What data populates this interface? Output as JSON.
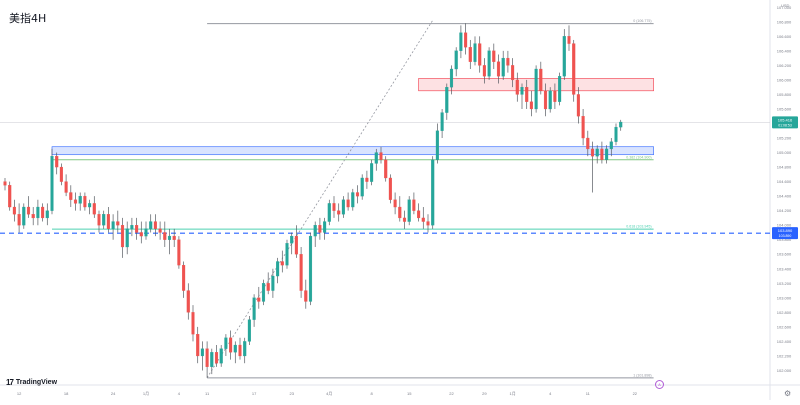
{
  "header": {
    "title": "美指4H",
    "currency": "USD"
  },
  "branding": {
    "logo_text": "TradingView"
  },
  "event_marker": "A",
  "colors": {
    "up": "#26a69a",
    "down": "#ef5350",
    "wick": "#555a60",
    "fib_line": "#9598a1",
    "blue_zone_fill": "rgba(41,98,255,0.18)",
    "blue_zone_border": "#2962ff",
    "red_zone_fill": "rgba(242,54,69,0.15)",
    "red_zone_border": "#f23645",
    "support_dashed": "#2962ff",
    "fib_382": "#81c784",
    "fib_618": "#4dd0b1"
  },
  "chart_data": {
    "type": "candlestick",
    "title": "美指4H",
    "ylim": [
      101.8,
      107.1
    ],
    "y_ticks": [
      {
        "value": 107.0,
        "label": "107.000"
      },
      {
        "value": 106.8,
        "label": "106.800"
      },
      {
        "value": 106.6,
        "label": "106.600"
      },
      {
        "value": 106.4,
        "label": "106.400"
      },
      {
        "value": 106.2,
        "label": "106.200"
      },
      {
        "value": 106.0,
        "label": "106.000"
      },
      {
        "value": 105.8,
        "label": "105.800"
      },
      {
        "value": 105.6,
        "label": "105.600"
      },
      {
        "value": 105.4,
        "label": "105.400"
      },
      {
        "value": 105.2,
        "label": "105.200"
      },
      {
        "value": 105.0,
        "label": "105.000"
      },
      {
        "value": 104.8,
        "label": "104.800"
      },
      {
        "value": 104.6,
        "label": "104.600"
      },
      {
        "value": 104.4,
        "label": "104.400"
      },
      {
        "value": 104.2,
        "label": "104.200"
      },
      {
        "value": 104.0,
        "label": "104.000"
      },
      {
        "value": 103.8,
        "label": "103.800"
      },
      {
        "value": 103.6,
        "label": "103.600"
      },
      {
        "value": 103.4,
        "label": "103.400"
      },
      {
        "value": 103.2,
        "label": "103.200"
      },
      {
        "value": 103.0,
        "label": "103.000"
      },
      {
        "value": 102.8,
        "label": "102.800"
      },
      {
        "value": 102.6,
        "label": "102.600"
      },
      {
        "value": 102.4,
        "label": "102.400"
      },
      {
        "value": 102.2,
        "label": "102.200"
      },
      {
        "value": 102.0,
        "label": "102.000"
      }
    ],
    "x_ticks": [
      {
        "index": 3,
        "label": "12"
      },
      {
        "index": 13,
        "label": "18"
      },
      {
        "index": 23,
        "label": "24"
      },
      {
        "index": 30,
        "label": "1月"
      },
      {
        "index": 37,
        "label": "4"
      },
      {
        "index": 43,
        "label": "11"
      },
      {
        "index": 53,
        "label": "17"
      },
      {
        "index": 61,
        "label": "23"
      },
      {
        "index": 69,
        "label": "4月"
      },
      {
        "index": 78,
        "label": "8"
      },
      {
        "index": 86,
        "label": "15"
      },
      {
        "index": 95,
        "label": "22"
      },
      {
        "index": 102,
        "label": "29"
      },
      {
        "index": 108,
        "label": "1月"
      },
      {
        "index": 116,
        "label": "4"
      },
      {
        "index": 124,
        "label": "11"
      },
      {
        "index": 134,
        "label": "22"
      }
    ],
    "price_labels": [
      {
        "value": 105.416,
        "text": "105.416",
        "sub": "01:08:53",
        "color": "#26a69a"
      },
      {
        "value": 103.89,
        "text": "103.890",
        "sub": "103.890",
        "color": "#2962ff"
      }
    ],
    "fib_levels": [
      {
        "value": 106.775,
        "label": "0 (106.775)",
        "color": "#9598a1"
      },
      {
        "value": 104.9,
        "label": "0.382 (104.900)",
        "color": "#81c784"
      },
      {
        "value": 103.945,
        "label": "0.618 (103.945)",
        "color": "#4dd0b1"
      },
      {
        "value": 101.898,
        "label": "1 (101.898)",
        "color": "#9598a1"
      }
    ],
    "zones": [
      {
        "name": "blue-support-zone",
        "from_index": 10,
        "to_index": 138,
        "y_low": 104.97,
        "y_high": 105.08
      },
      {
        "name": "red-resistance-zone",
        "from_index": 88,
        "to_index": 138,
        "y_low": 105.85,
        "y_high": 106.02
      }
    ],
    "support_line": 103.89,
    "trendline": {
      "from": {
        "index": 43,
        "value": 101.9
      },
      "to": {
        "index": 91,
        "value": 106.82
      }
    },
    "candles": [
      {
        "o": 104.6,
        "h": 104.65,
        "l": 104.48,
        "c": 104.55
      },
      {
        "o": 104.55,
        "h": 104.6,
        "l": 104.2,
        "c": 104.25
      },
      {
        "o": 104.25,
        "h": 104.35,
        "l": 104.05,
        "c": 104.15
      },
      {
        "o": 104.15,
        "h": 104.3,
        "l": 103.9,
        "c": 104.0
      },
      {
        "o": 104.0,
        "h": 104.3,
        "l": 103.95,
        "c": 104.25
      },
      {
        "o": 104.25,
        "h": 104.4,
        "l": 104.1,
        "c": 104.15
      },
      {
        "o": 104.15,
        "h": 104.25,
        "l": 104.0,
        "c": 104.1
      },
      {
        "o": 104.1,
        "h": 104.35,
        "l": 104.0,
        "c": 104.25
      },
      {
        "o": 104.25,
        "h": 104.3,
        "l": 104.05,
        "c": 104.1
      },
      {
        "o": 104.1,
        "h": 104.3,
        "l": 104.0,
        "c": 104.2
      },
      {
        "o": 104.2,
        "h": 105.05,
        "l": 104.15,
        "c": 104.95
      },
      {
        "o": 104.95,
        "h": 105.0,
        "l": 104.7,
        "c": 104.8
      },
      {
        "o": 104.8,
        "h": 104.85,
        "l": 104.55,
        "c": 104.6
      },
      {
        "o": 104.6,
        "h": 104.7,
        "l": 104.4,
        "c": 104.45
      },
      {
        "o": 104.45,
        "h": 104.55,
        "l": 104.25,
        "c": 104.35
      },
      {
        "o": 104.35,
        "h": 104.45,
        "l": 104.2,
        "c": 104.3
      },
      {
        "o": 104.3,
        "h": 104.45,
        "l": 104.2,
        "c": 104.4
      },
      {
        "o": 104.4,
        "h": 104.45,
        "l": 104.2,
        "c": 104.25
      },
      {
        "o": 104.25,
        "h": 104.35,
        "l": 104.15,
        "c": 104.3
      },
      {
        "o": 104.3,
        "h": 104.4,
        "l": 104.1,
        "c": 104.15
      },
      {
        "o": 104.15,
        "h": 104.2,
        "l": 103.9,
        "c": 104.0
      },
      {
        "o": 104.0,
        "h": 104.2,
        "l": 103.95,
        "c": 104.15
      },
      {
        "o": 104.15,
        "h": 104.25,
        "l": 103.9,
        "c": 103.95
      },
      {
        "o": 103.95,
        "h": 104.15,
        "l": 103.8,
        "c": 104.05
      },
      {
        "o": 104.05,
        "h": 104.2,
        "l": 103.9,
        "c": 104.0
      },
      {
        "o": 104.0,
        "h": 104.1,
        "l": 103.55,
        "c": 103.7
      },
      {
        "o": 103.7,
        "h": 104.05,
        "l": 103.6,
        "c": 103.95
      },
      {
        "o": 103.95,
        "h": 104.1,
        "l": 103.85,
        "c": 104.0
      },
      {
        "o": 104.0,
        "h": 104.1,
        "l": 103.8,
        "c": 103.9
      },
      {
        "o": 103.9,
        "h": 104.05,
        "l": 103.75,
        "c": 103.85
      },
      {
        "o": 103.85,
        "h": 104.05,
        "l": 103.8,
        "c": 103.95
      },
      {
        "o": 103.95,
        "h": 104.15,
        "l": 103.9,
        "c": 104.05
      },
      {
        "o": 104.05,
        "h": 104.15,
        "l": 103.85,
        "c": 103.95
      },
      {
        "o": 103.95,
        "h": 104.05,
        "l": 103.8,
        "c": 103.9
      },
      {
        "o": 103.9,
        "h": 104.05,
        "l": 103.7,
        "c": 103.8
      },
      {
        "o": 103.8,
        "h": 103.95,
        "l": 103.6,
        "c": 103.85
      },
      {
        "o": 103.85,
        "h": 103.95,
        "l": 103.7,
        "c": 103.8
      },
      {
        "o": 103.8,
        "h": 103.85,
        "l": 103.4,
        "c": 103.45
      },
      {
        "o": 103.45,
        "h": 103.5,
        "l": 103.0,
        "c": 103.1
      },
      {
        "o": 103.1,
        "h": 103.2,
        "l": 102.7,
        "c": 102.8
      },
      {
        "o": 102.8,
        "h": 102.9,
        "l": 102.4,
        "c": 102.5
      },
      {
        "o": 102.5,
        "h": 102.6,
        "l": 102.1,
        "c": 102.2
      },
      {
        "o": 102.2,
        "h": 102.4,
        "l": 102.0,
        "c": 102.3
      },
      {
        "o": 102.3,
        "h": 102.4,
        "l": 101.9,
        "c": 102.05
      },
      {
        "o": 102.05,
        "h": 102.3,
        "l": 101.95,
        "c": 102.25
      },
      {
        "o": 102.25,
        "h": 102.35,
        "l": 102.05,
        "c": 102.1
      },
      {
        "o": 102.1,
        "h": 102.35,
        "l": 102.05,
        "c": 102.3
      },
      {
        "o": 102.3,
        "h": 102.5,
        "l": 102.2,
        "c": 102.45
      },
      {
        "o": 102.45,
        "h": 102.55,
        "l": 102.15,
        "c": 102.25
      },
      {
        "o": 102.25,
        "h": 102.4,
        "l": 102.1,
        "c": 102.35
      },
      {
        "o": 102.35,
        "h": 102.45,
        "l": 102.15,
        "c": 102.2
      },
      {
        "o": 102.2,
        "h": 102.45,
        "l": 102.1,
        "c": 102.4
      },
      {
        "o": 102.4,
        "h": 102.75,
        "l": 102.35,
        "c": 102.7
      },
      {
        "o": 102.7,
        "h": 103.05,
        "l": 102.6,
        "c": 103.0
      },
      {
        "o": 103.0,
        "h": 103.15,
        "l": 102.85,
        "c": 102.95
      },
      {
        "o": 102.95,
        "h": 103.25,
        "l": 102.9,
        "c": 103.2
      },
      {
        "o": 103.2,
        "h": 103.35,
        "l": 103.05,
        "c": 103.1
      },
      {
        "o": 103.1,
        "h": 103.4,
        "l": 103.0,
        "c": 103.3
      },
      {
        "o": 103.3,
        "h": 103.55,
        "l": 103.2,
        "c": 103.5
      },
      {
        "o": 103.5,
        "h": 103.65,
        "l": 103.35,
        "c": 103.45
      },
      {
        "o": 103.45,
        "h": 103.8,
        "l": 103.4,
        "c": 103.75
      },
      {
        "o": 103.75,
        "h": 103.9,
        "l": 103.6,
        "c": 103.85
      },
      {
        "o": 103.85,
        "h": 104.0,
        "l": 103.55,
        "c": 103.6
      },
      {
        "o": 103.6,
        "h": 103.7,
        "l": 103.0,
        "c": 103.1
      },
      {
        "o": 103.1,
        "h": 103.25,
        "l": 102.85,
        "c": 102.95
      },
      {
        "o": 102.95,
        "h": 103.9,
        "l": 102.9,
        "c": 103.85
      },
      {
        "o": 103.85,
        "h": 104.05,
        "l": 103.7,
        "c": 104.0
      },
      {
        "o": 104.0,
        "h": 104.1,
        "l": 103.8,
        "c": 103.9
      },
      {
        "o": 103.9,
        "h": 104.1,
        "l": 103.8,
        "c": 104.05
      },
      {
        "o": 104.05,
        "h": 104.35,
        "l": 104.0,
        "c": 104.3
      },
      {
        "o": 104.3,
        "h": 104.4,
        "l": 104.1,
        "c": 104.2
      },
      {
        "o": 104.2,
        "h": 104.3,
        "l": 104.05,
        "c": 104.15
      },
      {
        "o": 104.15,
        "h": 104.4,
        "l": 104.1,
        "c": 104.35
      },
      {
        "o": 104.35,
        "h": 104.45,
        "l": 104.2,
        "c": 104.25
      },
      {
        "o": 104.25,
        "h": 104.5,
        "l": 104.2,
        "c": 104.45
      },
      {
        "o": 104.45,
        "h": 104.55,
        "l": 104.3,
        "c": 104.4
      },
      {
        "o": 104.4,
        "h": 104.7,
        "l": 104.35,
        "c": 104.65
      },
      {
        "o": 104.65,
        "h": 104.75,
        "l": 104.5,
        "c": 104.6
      },
      {
        "o": 104.6,
        "h": 104.9,
        "l": 104.55,
        "c": 104.85
      },
      {
        "o": 104.85,
        "h": 105.05,
        "l": 104.75,
        "c": 105.0
      },
      {
        "o": 105.0,
        "h": 105.08,
        "l": 104.85,
        "c": 104.9
      },
      {
        "o": 104.9,
        "h": 104.95,
        "l": 104.6,
        "c": 104.65
      },
      {
        "o": 104.65,
        "h": 104.7,
        "l": 104.3,
        "c": 104.35
      },
      {
        "o": 104.35,
        "h": 104.45,
        "l": 104.15,
        "c": 104.25
      },
      {
        "o": 104.25,
        "h": 104.4,
        "l": 104.05,
        "c": 104.1
      },
      {
        "o": 104.1,
        "h": 104.2,
        "l": 103.95,
        "c": 104.05
      },
      {
        "o": 104.05,
        "h": 104.4,
        "l": 104.0,
        "c": 104.35
      },
      {
        "o": 104.35,
        "h": 104.45,
        "l": 104.15,
        "c": 104.2
      },
      {
        "o": 104.2,
        "h": 104.3,
        "l": 104.05,
        "c": 104.1
      },
      {
        "o": 104.1,
        "h": 104.25,
        "l": 103.95,
        "c": 104.05
      },
      {
        "o": 104.05,
        "h": 104.15,
        "l": 103.9,
        "c": 104.0
      },
      {
        "o": 104.0,
        "h": 104.95,
        "l": 103.95,
        "c": 104.9
      },
      {
        "o": 104.9,
        "h": 105.4,
        "l": 104.85,
        "c": 105.3
      },
      {
        "o": 105.3,
        "h": 105.6,
        "l": 105.2,
        "c": 105.55
      },
      {
        "o": 105.55,
        "h": 105.95,
        "l": 105.45,
        "c": 105.9
      },
      {
        "o": 105.9,
        "h": 106.2,
        "l": 105.8,
        "c": 106.15
      },
      {
        "o": 106.15,
        "h": 106.45,
        "l": 106.05,
        "c": 106.4
      },
      {
        "o": 106.4,
        "h": 106.75,
        "l": 106.3,
        "c": 106.65
      },
      {
        "o": 106.65,
        "h": 106.78,
        "l": 106.35,
        "c": 106.45
      },
      {
        "o": 106.45,
        "h": 106.55,
        "l": 106.15,
        "c": 106.25
      },
      {
        "o": 106.25,
        "h": 106.6,
        "l": 106.2,
        "c": 106.5
      },
      {
        "o": 106.5,
        "h": 106.6,
        "l": 106.1,
        "c": 106.2
      },
      {
        "o": 106.2,
        "h": 106.3,
        "l": 105.95,
        "c": 106.05
      },
      {
        "o": 106.05,
        "h": 106.45,
        "l": 106.0,
        "c": 106.4
      },
      {
        "o": 106.4,
        "h": 106.5,
        "l": 106.15,
        "c": 106.25
      },
      {
        "o": 106.25,
        "h": 106.35,
        "l": 105.95,
        "c": 106.05
      },
      {
        "o": 106.05,
        "h": 106.4,
        "l": 106.0,
        "c": 106.3
      },
      {
        "o": 106.3,
        "h": 106.4,
        "l": 106.1,
        "c": 106.2
      },
      {
        "o": 106.2,
        "h": 106.3,
        "l": 105.9,
        "c": 106.0
      },
      {
        "o": 106.0,
        "h": 106.1,
        "l": 105.7,
        "c": 105.8
      },
      {
        "o": 105.8,
        "h": 105.95,
        "l": 105.6,
        "c": 105.9
      },
      {
        "o": 105.9,
        "h": 106.0,
        "l": 105.6,
        "c": 105.7
      },
      {
        "o": 105.7,
        "h": 105.85,
        "l": 105.5,
        "c": 105.6
      },
      {
        "o": 105.6,
        "h": 106.2,
        "l": 105.55,
        "c": 106.15
      },
      {
        "o": 106.15,
        "h": 106.25,
        "l": 105.8,
        "c": 105.85
      },
      {
        "o": 105.85,
        "h": 105.95,
        "l": 105.5,
        "c": 105.6
      },
      {
        "o": 105.6,
        "h": 105.9,
        "l": 105.55,
        "c": 105.85
      },
      {
        "o": 105.85,
        "h": 105.95,
        "l": 105.6,
        "c": 105.7
      },
      {
        "o": 105.7,
        "h": 106.1,
        "l": 105.65,
        "c": 106.05
      },
      {
        "o": 106.05,
        "h": 106.7,
        "l": 106.0,
        "c": 106.6
      },
      {
        "o": 106.6,
        "h": 106.75,
        "l": 106.4,
        "c": 106.5
      },
      {
        "o": 106.5,
        "h": 106.55,
        "l": 105.7,
        "c": 105.8
      },
      {
        "o": 105.8,
        "h": 105.9,
        "l": 105.4,
        "c": 105.5
      },
      {
        "o": 105.5,
        "h": 105.6,
        "l": 105.1,
        "c": 105.2
      },
      {
        "o": 105.2,
        "h": 105.3,
        "l": 104.95,
        "c": 105.05
      },
      {
        "o": 105.05,
        "h": 105.15,
        "l": 104.45,
        "c": 104.95
      },
      {
        "o": 104.95,
        "h": 105.1,
        "l": 104.85,
        "c": 105.05
      },
      {
        "o": 105.05,
        "h": 105.15,
        "l": 104.85,
        "c": 104.9
      },
      {
        "o": 104.9,
        "h": 105.1,
        "l": 104.85,
        "c": 105.05
      },
      {
        "o": 105.05,
        "h": 105.2,
        "l": 104.95,
        "c": 105.15
      },
      {
        "o": 105.15,
        "h": 105.4,
        "l": 105.1,
        "c": 105.35
      },
      {
        "o": 105.35,
        "h": 105.45,
        "l": 105.3,
        "c": 105.42
      }
    ]
  }
}
